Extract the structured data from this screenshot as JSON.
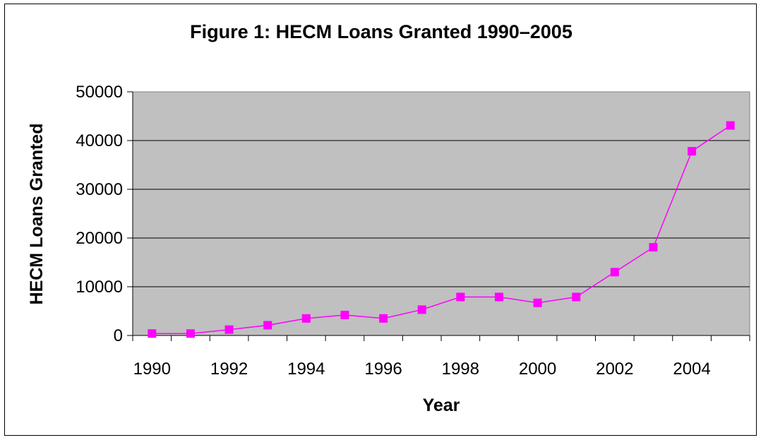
{
  "chart_data": {
    "type": "line",
    "title": "Figure 1: HECM Loans Granted 1990–2005",
    "xlabel": "Year",
    "ylabel": "HECM Loans Granted",
    "x": [
      1990,
      1991,
      1992,
      1993,
      1994,
      1995,
      1996,
      1997,
      1998,
      1999,
      2000,
      2001,
      2002,
      2003,
      2004,
      2005
    ],
    "x_tick_labels": [
      "1990",
      "1992",
      "1994",
      "1996",
      "1998",
      "2000",
      "2002",
      "2004"
    ],
    "y_tick_labels": [
      "0",
      "10000",
      "20000",
      "30000",
      "40000",
      "50000"
    ],
    "ylim": [
      0,
      50000
    ],
    "grid": true,
    "legend": "none",
    "plot_background": "#c0c0c0",
    "series": [
      {
        "color": "#ff00ff",
        "marker": "square",
        "values": [
          400,
          400,
          1200,
          2100,
          3500,
          4200,
          3500,
          5300,
          7900,
          7900,
          6700,
          7900,
          13000,
          18100,
          37800,
          43100
        ]
      }
    ]
  }
}
